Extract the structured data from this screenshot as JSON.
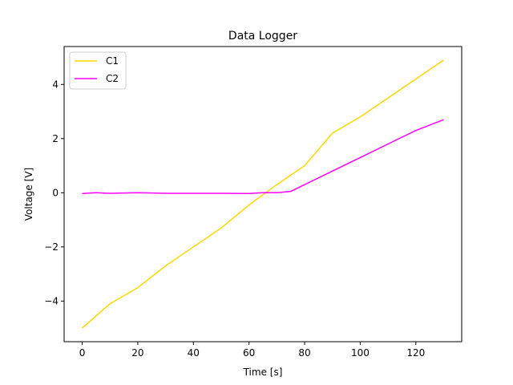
{
  "chart_data": {
    "type": "line",
    "title": "Data Logger",
    "xlabel": "Time [s]",
    "ylabel": "Voltage [V]",
    "xlim": [
      -6.5,
      136.5
    ],
    "ylim": [
      -5.5,
      5.4
    ],
    "xticks": [
      0,
      20,
      40,
      60,
      80,
      100,
      120
    ],
    "yticks": [
      -4,
      -2,
      0,
      2,
      4
    ],
    "ytick_labels": [
      "−4",
      "−2",
      "0",
      "2",
      "4"
    ],
    "xtick_labels": [
      "0",
      "20",
      "40",
      "60",
      "80",
      "100",
      "120"
    ],
    "grid": false,
    "legend_position": "top-left",
    "series": [
      {
        "name": "C1",
        "color": "#FFD700",
        "x": [
          0,
          10,
          20,
          30,
          40,
          50,
          60,
          66,
          70,
          80,
          90,
          100,
          110,
          120,
          130
        ],
        "y": [
          -5.0,
          -4.1,
          -3.5,
          -2.7,
          -2.0,
          -1.3,
          -0.45,
          0.0,
          0.3,
          1.0,
          2.2,
          2.8,
          3.5,
          4.2,
          4.9
        ]
      },
      {
        "name": "C2",
        "color": "#FF00FF",
        "x": [
          0,
          5,
          10,
          20,
          30,
          40,
          50,
          60,
          65,
          70,
          75,
          80,
          90,
          100,
          110,
          120,
          130
        ],
        "y": [
          -0.03,
          0.0,
          -0.02,
          0.0,
          -0.02,
          -0.02,
          -0.02,
          -0.03,
          0.0,
          0.0,
          0.05,
          0.3,
          0.8,
          1.3,
          1.8,
          2.3,
          2.7
        ]
      }
    ]
  }
}
